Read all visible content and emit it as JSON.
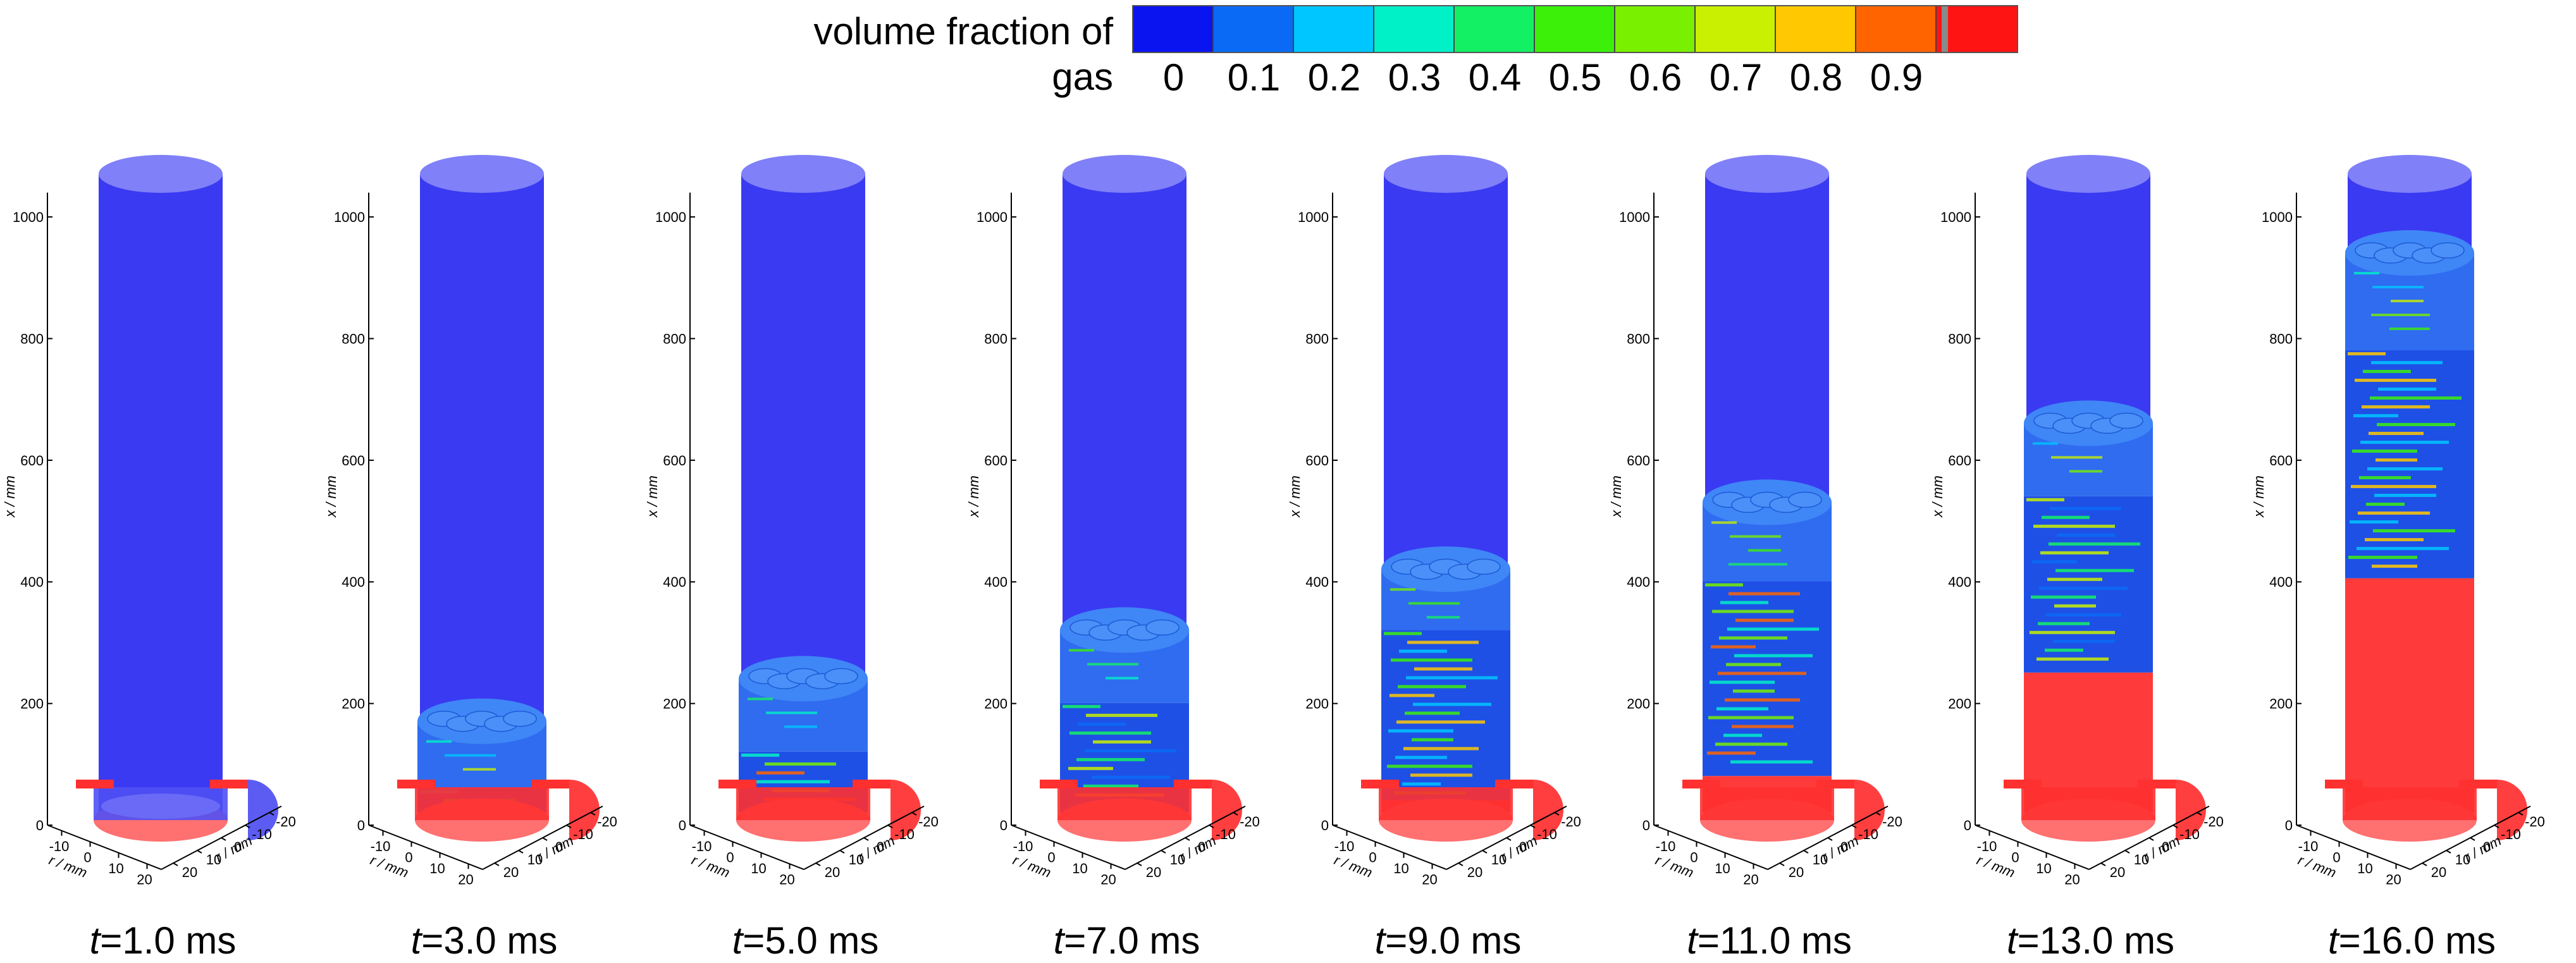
{
  "colorbar": {
    "title": "volume fraction of gas",
    "tick_labels": [
      "0",
      "0.1",
      "0.2",
      "0.3",
      "0.4",
      "0.5",
      "0.6",
      "0.7",
      "0.8",
      "0.9"
    ],
    "colors": [
      "#0a14f0",
      "#0a6af6",
      "#00c6ff",
      "#00f0c8",
      "#14f064",
      "#3cf00a",
      "#78f000",
      "#c8f000",
      "#ffc800",
      "#ff6400",
      "#ff1414"
    ]
  },
  "axis": {
    "x_title": "x / mm",
    "r_title_left": "r / mm",
    "r_title_right": "r / mm",
    "x_ticks": [
      "0",
      "200",
      "400",
      "600",
      "800",
      "1000"
    ],
    "r_ticks_left": [
      "-10",
      "0",
      "10",
      "20"
    ],
    "r_ticks_right": [
      "-20",
      "-10",
      "0",
      "10",
      "20"
    ]
  },
  "panels": [
    {
      "t_var": "t",
      "t_value": "=1.0 ms",
      "gas_front": 0,
      "mixed_top": 0,
      "liquid_top": 0
    },
    {
      "t_var": "t",
      "t_value": "=3.0 ms",
      "gas_front": 150,
      "mixed_top": 40,
      "liquid_top": 0
    },
    {
      "t_var": "t",
      "t_value": "=5.0 ms",
      "gas_front": 220,
      "mixed_top": 100,
      "liquid_top": 0
    },
    {
      "t_var": "t",
      "t_value": "=7.0 ms",
      "gas_front": 300,
      "mixed_top": 180,
      "liquid_top": 0
    },
    {
      "t_var": "t",
      "t_value": "=9.0 ms",
      "gas_front": 400,
      "mixed_top": 300,
      "liquid_top": 20
    },
    {
      "t_var": "t",
      "t_value": "=11.0 ms",
      "gas_front": 510,
      "mixed_top": 380,
      "liquid_top": 60
    },
    {
      "t_var": "t",
      "t_value": "=13.0 ms",
      "gas_front": 640,
      "mixed_top": 520,
      "liquid_top": 230
    },
    {
      "t_var": "t",
      "t_value": "=16.0 ms",
      "gas_front": 920,
      "mixed_top": 760,
      "liquid_top": 385
    }
  ],
  "x_range": [
    0,
    1050
  ]
}
